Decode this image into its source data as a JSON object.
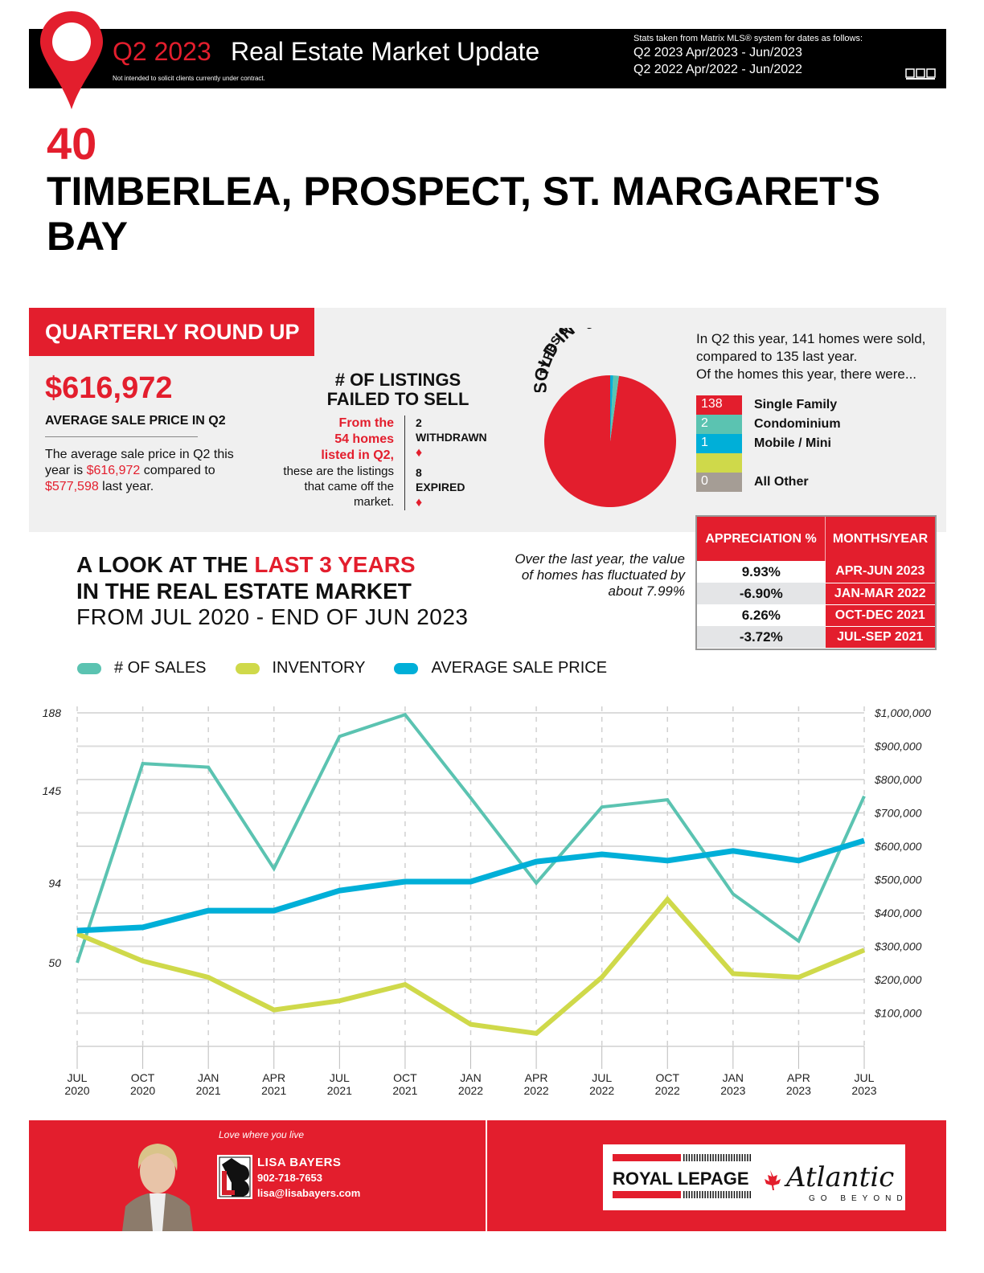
{
  "header": {
    "quarter": "Q2 2023",
    "title": "Real Estate Market Update",
    "disclaimer": "Not intended to solicit clients currently under contract.",
    "stats_note": "Stats taken from Matrix MLS® system for dates as follows:",
    "period_current": "Q2 2023 Apr/2023 - Jun/2023",
    "period_previous": "Q2 2022 Apr/2022 - Jun/2022",
    "mls_logo": "mls-logo-icon"
  },
  "area": {
    "number": "40",
    "name": "TIMBERLEA, PROSPECT, ST. MARGARET'S BAY"
  },
  "roundup": {
    "tag": "QUARTERLY ROUND UP",
    "avg_price": "$616,972",
    "avg_label": "AVERAGE SALE PRICE IN Q2",
    "desc_pre": "The average sale price in Q2 this year is ",
    "desc_current": "$616,972",
    "desc_mid": " compared to ",
    "desc_previous": "$577,598",
    "desc_post": " last year.",
    "listings_title_1": "# OF LISTINGS",
    "listings_title_2": "FAILED TO SELL",
    "listings_from_1": "From the",
    "listings_from_2": "54 homes",
    "listings_from_3": "listed in Q2,",
    "listings_desc": "these are the listings that came off the market.",
    "withdrawn_count": "2",
    "withdrawn_label": "WITHDRAWN",
    "expired_count": "8",
    "expired_label": "EXPIRED",
    "diamond": "♦"
  },
  "types": {
    "title_1": "TYPES OF HOMES",
    "title_2": "SOLD IN Q2",
    "text_1": "In Q2 this year, 141 homes were sold,",
    "text_2": "compared to 135 last year.",
    "text_3": "Of the homes this year, there were...",
    "items": [
      {
        "count": "138",
        "label": "Single Family",
        "color": "#e31e2d"
      },
      {
        "count": "2",
        "label": "Condominium",
        "color": "#5bc3b1"
      },
      {
        "count": "1",
        "label": "Mobile / Mini",
        "color": "#00afd8"
      },
      {
        "count": "",
        "label": "",
        "color": "#cfd94a"
      },
      {
        "count": "0",
        "label": "All Other",
        "color": "#a59d95"
      }
    ]
  },
  "look": {
    "title_a": "A LOOK AT THE ",
    "title_b": "LAST 3 YEARS",
    "title_c": "IN THE REAL ESTATE MARKET",
    "subtitle": "FROM JUL 2020 - END OF JUN 2023",
    "fluct": "Over the last year, the value of homes has fluctuated by about 7.99%"
  },
  "appreciation": {
    "col1": "APPRECIATION %",
    "col2": "MONTHS/YEAR",
    "rows": [
      {
        "value": "9.93%",
        "period": "APR-JUN 2023"
      },
      {
        "value": "-6.90%",
        "period": "JAN-MAR 2022"
      },
      {
        "value": "6.26%",
        "period": "OCT-DEC 2021"
      },
      {
        "value": "-3.72%",
        "period": "JUL-SEP 2021"
      }
    ]
  },
  "colors": {
    "brand_red": "#e31e2d",
    "sales": "#5bc3b1",
    "inventory": "#cfd94a",
    "price": "#00afd8"
  },
  "chart_data": [
    {
      "type": "pie",
      "title": "TYPES OF HOMES SOLD IN Q2",
      "categories": [
        "Single Family",
        "Condominium",
        "Mobile / Mini",
        "All Other"
      ],
      "values": [
        138,
        2,
        1,
        0
      ]
    },
    {
      "type": "line",
      "title": "",
      "categories": [
        "JUL 2020",
        "OCT 2020",
        "JAN 2021",
        "APR 2021",
        "JUL 2021",
        "OCT 2021",
        "JAN 2022",
        "APR 2022",
        "JUL 2022",
        "OCT 2022",
        "JAN 2023",
        "APR 2023",
        "JUL 2023"
      ],
      "x_labels": [
        [
          "JUL",
          "2020"
        ],
        [
          "OCT",
          "2020"
        ],
        [
          "JAN",
          "2021"
        ],
        [
          "APR",
          "2021"
        ],
        [
          "JUL",
          "2021"
        ],
        [
          "OCT",
          "2021"
        ],
        [
          "JAN",
          "2022"
        ],
        [
          "APR",
          "2022"
        ],
        [
          "JUL",
          "2022"
        ],
        [
          "OCT",
          "2022"
        ],
        [
          "JAN",
          "2023"
        ],
        [
          "APR",
          "2023"
        ],
        [
          "JUL",
          "2023"
        ]
      ],
      "legend": [
        "# OF SALES",
        "INVENTORY",
        "AVERAGE SALE PRICE"
      ],
      "legend_position": "top-left",
      "left_axis": {
        "ticks": [
          "188",
          "145",
          "94",
          "50"
        ],
        "tick_values": [
          188,
          145,
          94,
          50
        ],
        "range": [
          0,
          188
        ]
      },
      "right_axis": {
        "ticks": [
          "$1,000,000",
          "$900,000",
          "$800,000",
          "$700,000",
          "$600,000",
          "$500,000",
          "$400,000",
          "$300,000",
          "$200,000",
          "$100,000"
        ],
        "tick_values": [
          1000000,
          900000,
          800000,
          700000,
          600000,
          500000,
          400000,
          300000,
          200000,
          100000
        ],
        "range": [
          0,
          1000000
        ]
      },
      "grid": true,
      "series": [
        {
          "name": "# OF SALES",
          "axis": "left",
          "values": [
            50,
            160,
            158,
            102,
            175,
            187,
            141,
            94,
            136,
            140,
            88,
            62,
            142
          ]
        },
        {
          "name": "INVENTORY",
          "axis": "left",
          "values": [
            66,
            51,
            42,
            24,
            29,
            38,
            16,
            11,
            42,
            85,
            44,
            42,
            57
          ]
        },
        {
          "name": "AVERAGE SALE PRICE",
          "axis": "right",
          "values": [
            347000,
            357000,
            407000,
            407000,
            467000,
            494000,
            494000,
            554000,
            576000,
            557000,
            586000,
            557000,
            617000
          ]
        }
      ]
    }
  ],
  "footer": {
    "tagline": "Love where you live",
    "agent_name": "LISA BAYERS",
    "phone": "902-718-7653",
    "email": "lisa@lisabayers.com",
    "brand_1": "ROYAL LEPAGE",
    "brand_2": "Atlantic",
    "brand_3": "GO BEYOND"
  }
}
